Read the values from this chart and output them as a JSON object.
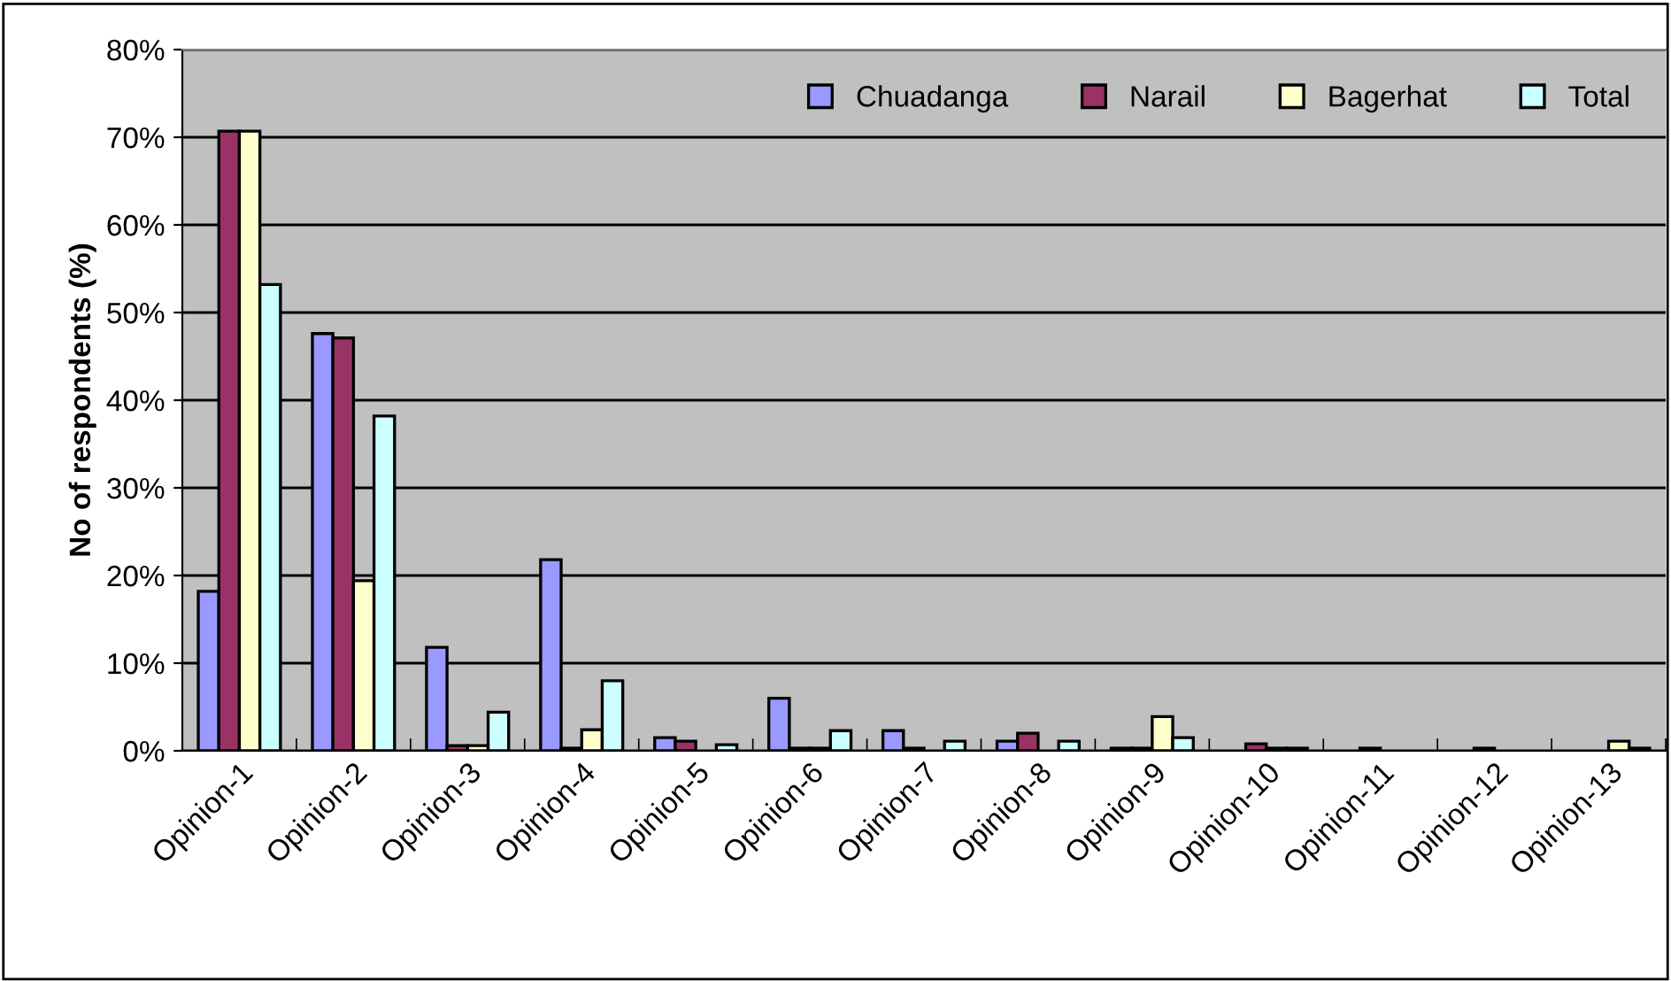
{
  "chart_data": {
    "type": "bar",
    "ylabel": "No of respondents (%)",
    "categories": [
      "Opinion-1",
      "Opinion-2",
      "Opinion-3",
      "Opinion-4",
      "Opinion-5",
      "Opinion-6",
      "Opinion-7",
      "Opinion-8",
      "Opinion-9",
      "Opinion-10",
      "Opinion-11",
      "Opinion-12",
      "Opinion-13"
    ],
    "series": [
      {
        "name": "Chuadanga",
        "color": "#9999ff",
        "values": [
          18.2,
          47.6,
          11.8,
          21.8,
          1.5,
          6.0,
          2.3,
          1.1,
          0.3,
          null,
          null,
          null,
          null
        ]
      },
      {
        "name": "Narail",
        "color": "#993366",
        "values": [
          70.7,
          47.1,
          0.6,
          0.3,
          1.1,
          0.3,
          0.3,
          2.0,
          0.3,
          0.8,
          0.3,
          0.3,
          null
        ]
      },
      {
        "name": "Bagerhat",
        "color": "#ffffcc",
        "values": [
          70.7,
          19.4,
          0.6,
          2.4,
          null,
          0.3,
          null,
          null,
          3.9,
          0.3,
          null,
          null,
          1.1
        ]
      },
      {
        "name": "Total",
        "color": "#ccffff",
        "values": [
          53.2,
          38.2,
          4.4,
          8.0,
          0.7,
          2.3,
          1.1,
          1.1,
          1.5,
          0.3,
          null,
          null,
          0.3
        ]
      }
    ],
    "ylim": [
      0,
      80
    ],
    "yticks": [
      {
        "value": 0,
        "label": "0%"
      },
      {
        "value": 10,
        "label": "10%"
      },
      {
        "value": 20,
        "label": "20%"
      },
      {
        "value": 30,
        "label": "30%"
      },
      {
        "value": 40,
        "label": "40%"
      },
      {
        "value": 50,
        "label": "50%"
      },
      {
        "value": 60,
        "label": "60%"
      },
      {
        "value": 70,
        "label": "70%"
      },
      {
        "value": 80,
        "label": "80%"
      }
    ],
    "grid": "y",
    "legend": "top right"
  }
}
